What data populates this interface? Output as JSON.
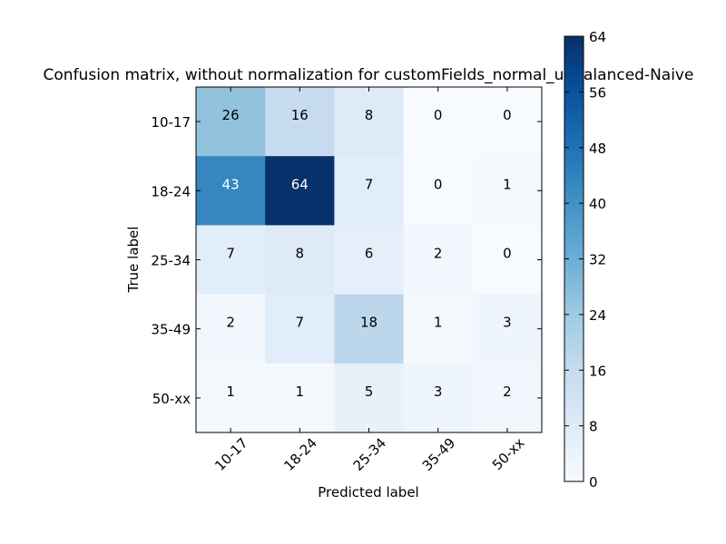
{
  "chart_data": {
    "type": "heatmap",
    "title": "Confusion matrix, without normalization for customFields_normal_unbalanced-Naive",
    "xlabel": "Predicted label",
    "ylabel": "True label",
    "x_categories": [
      "10-17",
      "18-24",
      "25-34",
      "35-49",
      "50-xx"
    ],
    "y_categories": [
      "10-17",
      "18-24",
      "25-34",
      "35-49",
      "50-xx"
    ],
    "values": [
      [
        26,
        16,
        8,
        0,
        0
      ],
      [
        43,
        64,
        7,
        0,
        1
      ],
      [
        7,
        8,
        6,
        2,
        0
      ],
      [
        2,
        7,
        18,
        1,
        3
      ],
      [
        1,
        1,
        5,
        3,
        2
      ]
    ],
    "colormap": "Blues",
    "colorbar": {
      "min": 0,
      "max": 64,
      "ticks": [
        "0",
        "8",
        "16",
        "24",
        "32",
        "40",
        "48",
        "56",
        "64"
      ]
    },
    "grid": false
  }
}
